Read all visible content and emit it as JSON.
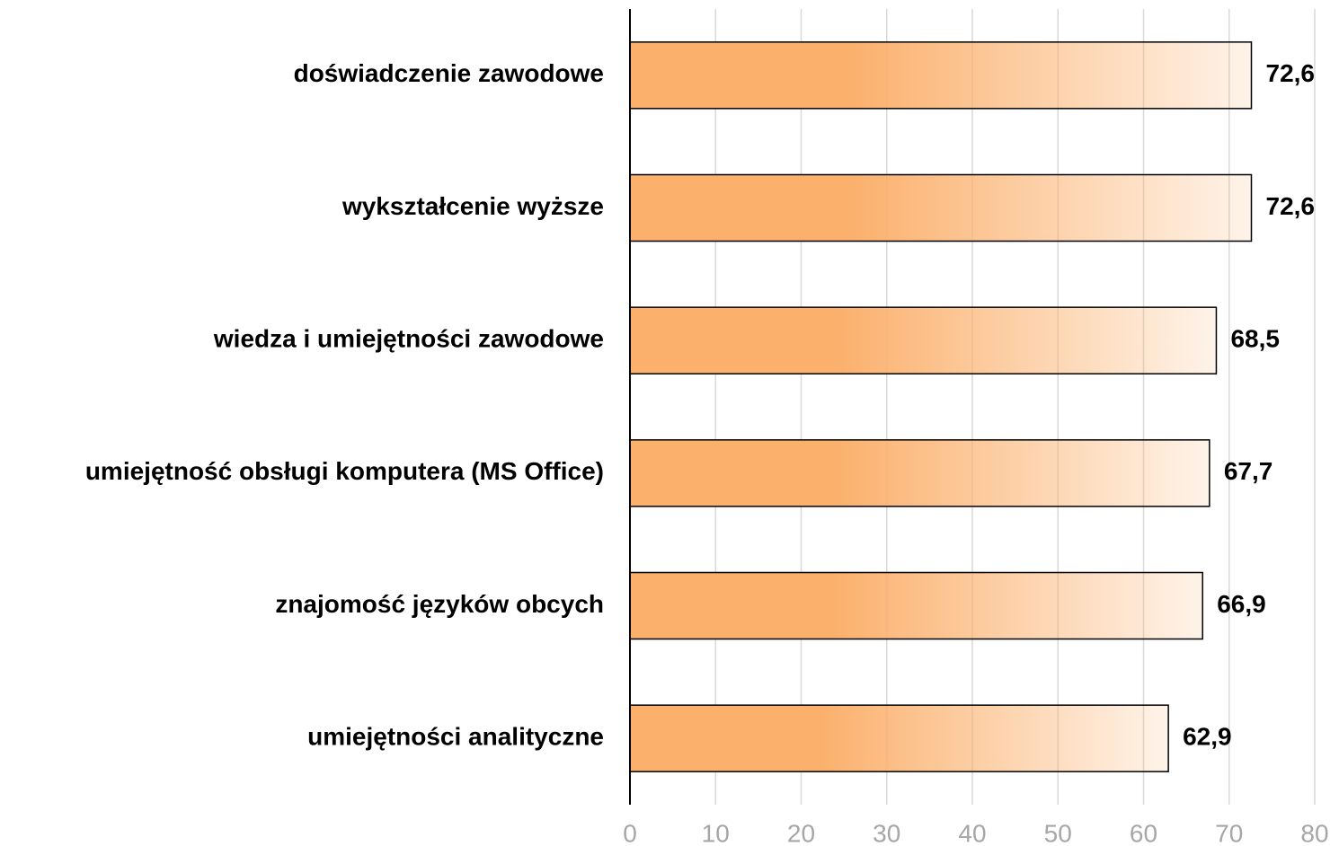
{
  "chart_data": {
    "type": "bar",
    "orientation": "horizontal",
    "categories": [
      "doświadczenie zawodowe",
      "wykształcenie wyższe",
      "wiedza i umiejętności zawodowe",
      "umiejętność obsługi komputera (MS Office)",
      "znajomość języków obcych",
      "umiejętności analityczne"
    ],
    "values": [
      72.6,
      72.6,
      68.5,
      67.7,
      66.9,
      62.9
    ],
    "value_labels": [
      "72,6",
      "72,6",
      "68,5",
      "67,7",
      "66,9",
      "62,9"
    ],
    "color": "#fbb06c",
    "xlim": [
      0,
      80
    ],
    "xticks": [
      0,
      10,
      20,
      30,
      40,
      50,
      60,
      70,
      80
    ],
    "grid": true
  }
}
